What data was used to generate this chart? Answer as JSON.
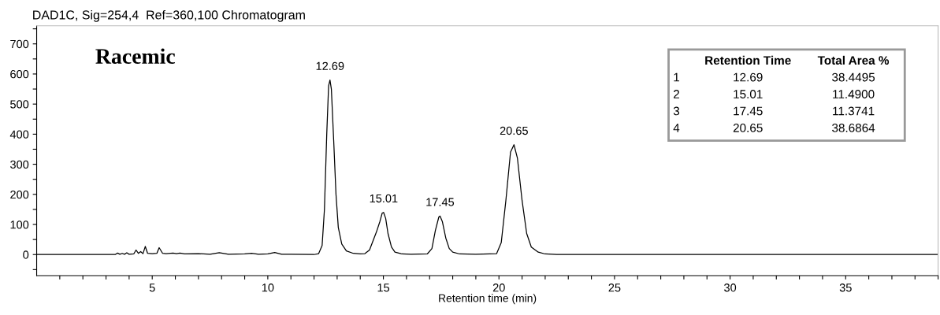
{
  "chart_data": {
    "type": "line",
    "title": "DAD1C, Sig=254,4  Ref=360,100 Chromatogram",
    "xlabel": "Retention time (min)",
    "xlim": [
      0,
      39
    ],
    "ylim": [
      -70,
      760
    ],
    "xticks": [
      {
        "value": 1,
        "label": null
      },
      {
        "value": 2,
        "label": null
      },
      {
        "value": 3,
        "label": null
      },
      {
        "value": 4,
        "label": null
      },
      5,
      {
        "value": 6,
        "label": null
      },
      {
        "value": 7,
        "label": null
      },
      {
        "value": 8,
        "label": null
      },
      {
        "value": 9,
        "label": null
      },
      10,
      {
        "value": 11,
        "label": null
      },
      {
        "value": 12,
        "label": null
      },
      {
        "value": 13,
        "label": null
      },
      {
        "value": 14,
        "label": null
      },
      15,
      {
        "value": 16,
        "label": null
      },
      {
        "value": 17,
        "label": null
      },
      {
        "value": 18,
        "label": null
      },
      {
        "value": 19,
        "label": null
      },
      20,
      {
        "value": 21,
        "label": null
      },
      {
        "value": 22,
        "label": null
      },
      {
        "value": 23,
        "label": null
      },
      {
        "value": 24,
        "label": null
      },
      25,
      {
        "value": 26,
        "label": null
      },
      {
        "value": 27,
        "label": null
      },
      {
        "value": 28,
        "label": null
      },
      {
        "value": 29,
        "label": null
      },
      30,
      {
        "value": 31,
        "label": null
      },
      {
        "value": 32,
        "label": null
      },
      {
        "value": 33,
        "label": null
      },
      {
        "value": 34,
        "label": null
      },
      35,
      {
        "value": 36,
        "label": null
      },
      {
        "value": 37,
        "label": null
      },
      {
        "value": 38,
        "label": null
      },
      {
        "value": 39,
        "label": null
      }
    ],
    "yticks": [
      {
        "value": -50,
        "label": null
      },
      0,
      {
        "value": 50,
        "label": null
      },
      100,
      {
        "value": 150,
        "label": null
      },
      200,
      {
        "value": 250,
        "label": null
      },
      300,
      {
        "value": 350,
        "label": null
      },
      400,
      {
        "value": 450,
        "label": null
      },
      500,
      {
        "value": 550,
        "label": null
      },
      600,
      {
        "value": 650,
        "label": null
      },
      700,
      {
        "value": 750,
        "label": null
      }
    ],
    "grid": false,
    "marker": "none",
    "line_style": "solid",
    "series": [
      {
        "color": "#000000",
        "x": [
          0,
          3.4,
          3.5,
          3.6,
          3.7,
          3.8,
          3.9,
          4.0,
          4.2,
          4.3,
          4.4,
          4.5,
          4.6,
          4.7,
          4.8,
          5.0,
          5.2,
          5.3,
          5.45,
          5.6,
          5.9,
          6.05,
          6.2,
          6.4,
          7.0,
          7.5,
          7.9,
          8.3,
          9.0,
          9.3,
          9.6,
          10.0,
          10.3,
          10.6,
          11.0,
          12.0,
          12.2,
          12.35,
          12.45,
          12.55,
          12.63,
          12.69,
          12.75,
          12.85,
          12.95,
          13.05,
          13.2,
          13.4,
          13.7,
          14.0,
          14.2,
          14.4,
          14.55,
          14.7,
          14.85,
          14.95,
          15.01,
          15.1,
          15.2,
          15.35,
          15.5,
          15.8,
          16.2,
          16.9,
          17.1,
          17.25,
          17.4,
          17.45,
          17.55,
          17.7,
          17.85,
          18.0,
          18.3,
          19.0,
          19.9,
          20.1,
          20.3,
          20.5,
          20.65,
          20.8,
          21.0,
          21.2,
          21.4,
          21.7,
          22.0,
          22.5,
          39
        ],
        "values": [
          0,
          0,
          5,
          1,
          4,
          1,
          6,
          1,
          2,
          15,
          4,
          10,
          3,
          27,
          4,
          3,
          4,
          23,
          4,
          3,
          5,
          3,
          5,
          2,
          3,
          1,
          6,
          1,
          2,
          4,
          1,
          2,
          7,
          1,
          1,
          0,
          3,
          30,
          150,
          400,
          560,
          580,
          550,
          380,
          200,
          90,
          35,
          12,
          4,
          2,
          3,
          15,
          45,
          75,
          110,
          138,
          140,
          120,
          70,
          25,
          8,
          2,
          1,
          2,
          20,
          80,
          125,
          128,
          110,
          55,
          20,
          8,
          2,
          1,
          3,
          40,
          180,
          340,
          365,
          320,
          180,
          70,
          25,
          8,
          2,
          0,
          0
        ]
      }
    ],
    "annotations": [
      "Racemic",
      {
        "text": "12.69",
        "x": 12.69,
        "y": 580
      },
      {
        "text": "15.01",
        "x": 15.01,
        "y": 140
      },
      {
        "text": "17.45",
        "x": 17.45,
        "y": 128
      },
      {
        "text": "20.65",
        "x": 20.65,
        "y": 365
      },
      "Retention Time",
      "Total Area %",
      "1",
      "12.69",
      "38.4495",
      "2",
      "15.01",
      "11.4900",
      "3",
      "17.45",
      "11.3741",
      "4",
      "20.65",
      "38.6864"
    ]
  }
}
